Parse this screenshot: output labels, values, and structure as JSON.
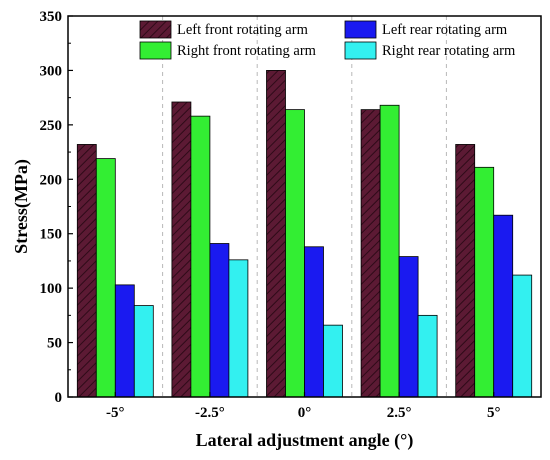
{
  "chart_data": {
    "type": "bar",
    "title": "",
    "xlabel": "Lateral adjustment angle (°)",
    "ylabel": "Stress(MPa)",
    "ylim": [
      0,
      350
    ],
    "y_ticks": [
      "0",
      "50",
      "100",
      "150",
      "200",
      "250",
      "300",
      "350"
    ],
    "categories": [
      "-5°",
      "-2.5°",
      "0°",
      "2.5°",
      "5°"
    ],
    "grid": "none",
    "legend_position": "top",
    "series": [
      {
        "name": "Left front rotating arm",
        "color": "#5c1a34",
        "pattern": "diagonal-hatch",
        "values": [
          232,
          271,
          300,
          264,
          232
        ]
      },
      {
        "name": "Right front rotating arm",
        "color": "#33ee33",
        "values": [
          219,
          258,
          264,
          268,
          211
        ]
      },
      {
        "name": "Left rear rotating arm",
        "color": "#1a1af0",
        "values": [
          103,
          141,
          138,
          129,
          167
        ]
      },
      {
        "name": "Right rear rotating arm",
        "color": "#33f0f0",
        "values": [
          84,
          126,
          66,
          75,
          112
        ]
      }
    ]
  }
}
